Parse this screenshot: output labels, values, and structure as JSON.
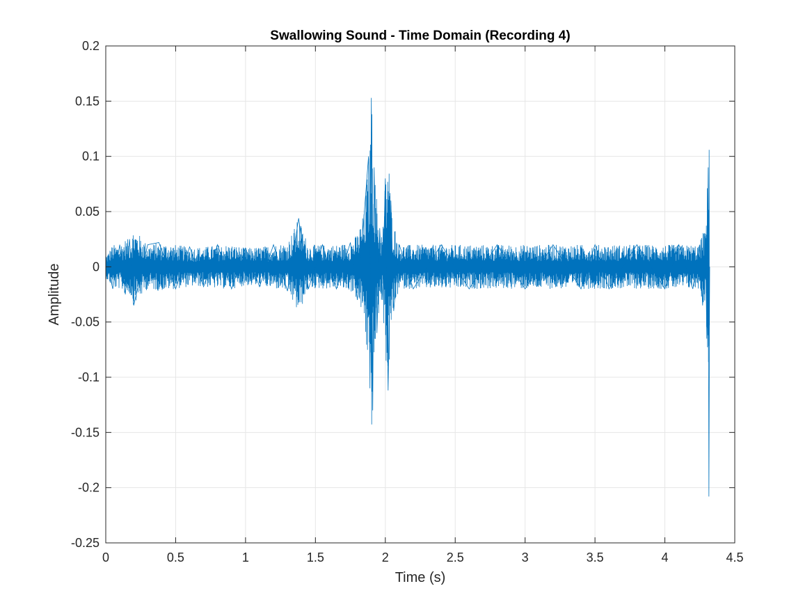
{
  "chart_data": {
    "type": "line",
    "title": "Swallowing Sound - Time Domain (Recording 4)",
    "xlabel": "Time (s)",
    "ylabel": "Amplitude",
    "xlim": [
      0,
      4.5
    ],
    "ylim": [
      -0.25,
      0.2
    ],
    "xticks": [
      0,
      0.5,
      1,
      1.5,
      2,
      2.5,
      3,
      3.5,
      4,
      4.5
    ],
    "xtick_labels": [
      "0",
      "0.5",
      "1",
      "1.5",
      "2",
      "2.5",
      "3",
      "3.5",
      "4",
      "4.5"
    ],
    "yticks": [
      -0.25,
      -0.2,
      -0.15,
      -0.1,
      -0.05,
      0,
      0.05,
      0.1,
      0.15,
      0.2
    ],
    "ytick_labels": [
      "-0.25",
      "-0.2",
      "-0.15",
      "-0.1",
      "-0.05",
      "0",
      "0.05",
      "0.1",
      "0.15",
      "0.2"
    ],
    "grid": true,
    "line_color": "#0072BD",
    "series": [
      {
        "x": [
          0.0,
          0.05,
          0.1,
          0.14,
          0.17,
          0.2,
          0.3,
          0.38,
          0.5,
          0.6,
          0.7,
          0.8,
          0.9,
          1.0,
          1.1,
          1.2,
          1.3,
          1.38,
          1.45,
          1.55,
          1.65,
          1.75,
          1.8,
          1.85,
          1.88,
          1.89,
          1.9,
          1.91,
          1.92,
          1.94,
          1.96,
          1.98,
          2.0,
          2.02,
          2.04,
          2.06,
          2.1,
          2.2,
          2.4,
          2.6,
          2.8,
          3.0,
          3.2,
          3.4,
          3.5,
          3.6,
          3.8,
          4.0,
          4.1,
          4.2,
          4.25,
          4.27,
          4.29,
          4.3,
          4.31,
          4.315,
          4.32
        ],
        "y": [
          0.01,
          -0.02,
          0.02,
          -0.025,
          0.025,
          -0.035,
          0.02,
          0.022,
          -0.02,
          0.018,
          -0.018,
          0.02,
          -0.02,
          0.017,
          -0.018,
          0.02,
          -0.022,
          0.044,
          -0.02,
          0.02,
          -0.02,
          0.022,
          -0.03,
          0.05,
          0.1,
          -0.11,
          0.153,
          -0.13,
          0.09,
          -0.06,
          0.035,
          -0.03,
          0.08,
          -0.112,
          0.06,
          -0.04,
          0.02,
          -0.02,
          0.02,
          -0.02,
          0.02,
          -0.02,
          0.02,
          -0.02,
          0.02,
          -0.02,
          0.02,
          -0.02,
          0.02,
          -0.02,
          0.02,
          -0.035,
          0.03,
          -0.065,
          0.09,
          -0.208,
          0.0
        ]
      }
    ]
  }
}
